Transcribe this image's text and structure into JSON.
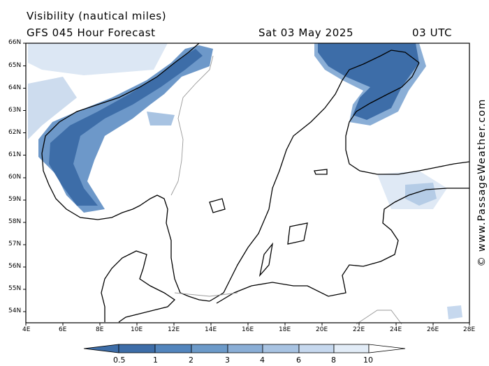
{
  "header": {
    "title": "Visibility (nautical miles)",
    "model": "GFS 045 Hour Forecast",
    "date": "Sat 03 May 2025",
    "time": "03 UTC"
  },
  "credit": "© www.PassageWeather.com",
  "map": {
    "lat_labels": [
      "66N",
      "65N",
      "64N",
      "63N",
      "62N",
      "61N",
      "60N",
      "59N",
      "58N",
      "57N",
      "56N",
      "55N",
      "54N"
    ],
    "lon_labels": [
      "4E",
      "6E",
      "8E",
      "10E",
      "12E",
      "14E",
      "16E",
      "18E",
      "20E",
      "22E",
      "24E",
      "26E",
      "28E"
    ],
    "region": "Scandinavia / Baltic Sea",
    "colors": {
      "land_outline": "#000000",
      "border": "#999999"
    }
  },
  "colorbar": {
    "labels": [
      "0.5",
      "1",
      "2",
      "3",
      "4",
      "6",
      "8",
      "10"
    ],
    "colors": [
      "#3d6da8",
      "#5285bd",
      "#6c9ac9",
      "#8aaed6",
      "#a8c3e2",
      "#c6d8ee",
      "#e2ecf7",
      "#ffffff"
    ]
  }
}
